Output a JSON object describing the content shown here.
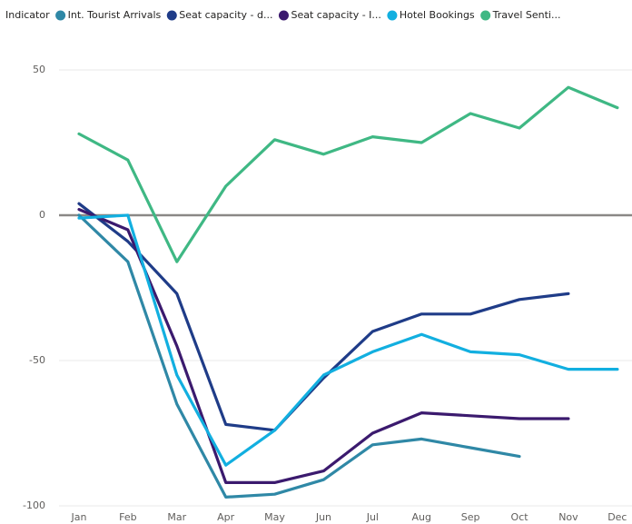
{
  "chart_data": {
    "type": "line",
    "legend_title": "Indicator",
    "categories": [
      "Jan",
      "Feb",
      "Mar",
      "Apr",
      "May",
      "Jun",
      "Jul",
      "Aug",
      "Sep",
      "Oct",
      "Nov",
      "Dec"
    ],
    "series": [
      {
        "name": "Int. Tourist Arrivals",
        "color": "#2f88a6",
        "values": [
          0,
          -16,
          -65,
          -97,
          -96,
          -91,
          -79,
          -77,
          -80,
          -83,
          null,
          null
        ]
      },
      {
        "name": "Seat capacity - d...",
        "color": "#1f3c88",
        "values": [
          4,
          -9,
          -27,
          -72,
          -74,
          -56,
          -40,
          -34,
          -34,
          -29,
          -27,
          null
        ]
      },
      {
        "name": "Seat capacity - I...",
        "color": "#3b1a6e",
        "values": [
          2,
          -5,
          -45,
          -92,
          -92,
          -88,
          -75,
          -68,
          -69,
          -70,
          -70,
          null
        ]
      },
      {
        "name": "Hotel Bookings",
        "color": "#12afe0",
        "values": [
          -1,
          0,
          -55,
          -86,
          -74,
          -55,
          -47,
          -41,
          -47,
          -48,
          -53,
          -53
        ]
      },
      {
        "name": "Travel Senti...",
        "color": "#3fb884",
        "values": [
          28,
          19,
          -16,
          10,
          26,
          21,
          27,
          25,
          35,
          30,
          44,
          37
        ]
      }
    ],
    "ylim": [
      -100,
      55
    ],
    "yticks": [
      -100,
      -50,
      0,
      50
    ],
    "grid": true,
    "legend": "top"
  }
}
